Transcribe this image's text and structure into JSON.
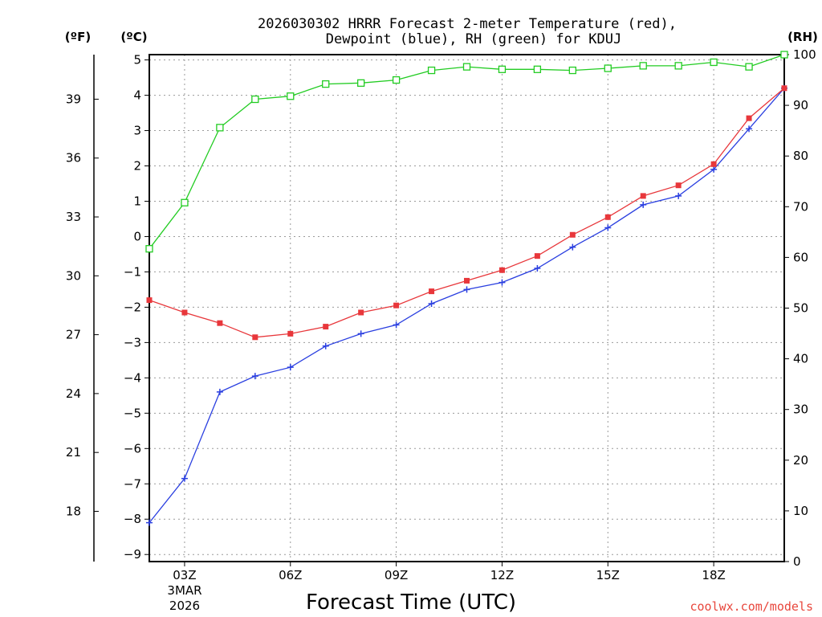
{
  "chart_data": {
    "type": "line",
    "title_line1": "2026030302 HRRR Forecast 2-meter Temperature (red),",
    "title_line2": "Dewpoint (blue), RH (green) for KDUJ",
    "xlabel": "Forecast Time (UTC)",
    "units": {
      "left_f": "(ºF)",
      "left_c": "(ºC)",
      "right_rh": "(RH)"
    },
    "credit": "coolwx.com/models",
    "date_label": [
      "3MAR",
      "2026"
    ],
    "x_hours": [
      2,
      3,
      4,
      5,
      6,
      7,
      8,
      9,
      10,
      11,
      12,
      13,
      14,
      15,
      16,
      17,
      18,
      19,
      20
    ],
    "xlim": [
      2,
      20
    ],
    "x_ticks": [
      {
        "hour": 3,
        "label": "03Z"
      },
      {
        "hour": 6,
        "label": "06Z"
      },
      {
        "hour": 9,
        "label": "09Z"
      },
      {
        "hour": 12,
        "label": "12Z"
      },
      {
        "hour": 15,
        "label": "15Z"
      },
      {
        "hour": 18,
        "label": "18Z"
      }
    ],
    "ylim_c": [
      -9.2,
      5.15
    ],
    "y_ticks_c": [
      "5",
      "4",
      "3",
      "2",
      "1",
      "0",
      "−1",
      "−2",
      "−3",
      "−4",
      "−5",
      "−6",
      "−7",
      "−8",
      "−9"
    ],
    "y_ticks_f": [
      "39",
      "36",
      "33",
      "30",
      "27",
      "24",
      "21",
      "18"
    ],
    "ylim_rh": [
      0,
      100
    ],
    "y_ticks_rh": [
      "100",
      "90",
      "80",
      "70",
      "60",
      "50",
      "40",
      "30",
      "20",
      "10",
      "0"
    ],
    "series": [
      {
        "name": "Temperature",
        "color": "#e8373b",
        "marker": "square-filled",
        "axis": "c",
        "values": [
          -1.8,
          -2.15,
          -2.45,
          -2.85,
          -2.75,
          -2.55,
          -2.15,
          -1.95,
          -1.55,
          -1.25,
          -0.95,
          -0.55,
          0.05,
          0.55,
          1.15,
          1.45,
          2.05,
          3.35,
          4.2
        ]
      },
      {
        "name": "Dewpoint",
        "color": "#2a3fe0",
        "marker": "plus",
        "axis": "c",
        "values": [
          -8.1,
          -6.85,
          -4.4,
          -3.95,
          -3.7,
          -3.1,
          -2.75,
          -2.5,
          -1.9,
          -1.5,
          -1.3,
          -0.9,
          -0.3,
          0.25,
          0.9,
          1.15,
          1.9,
          3.05,
          4.2
        ]
      },
      {
        "name": "RH",
        "color": "#22cc22",
        "marker": "square-open",
        "axis": "rh",
        "values": [
          61.7,
          70.8,
          85.6,
          91.2,
          91.8,
          94.2,
          94.4,
          95.0,
          96.9,
          97.6,
          97.1,
          97.1,
          96.9,
          97.3,
          97.8,
          97.8,
          98.5,
          97.6,
          100
        ]
      }
    ]
  }
}
